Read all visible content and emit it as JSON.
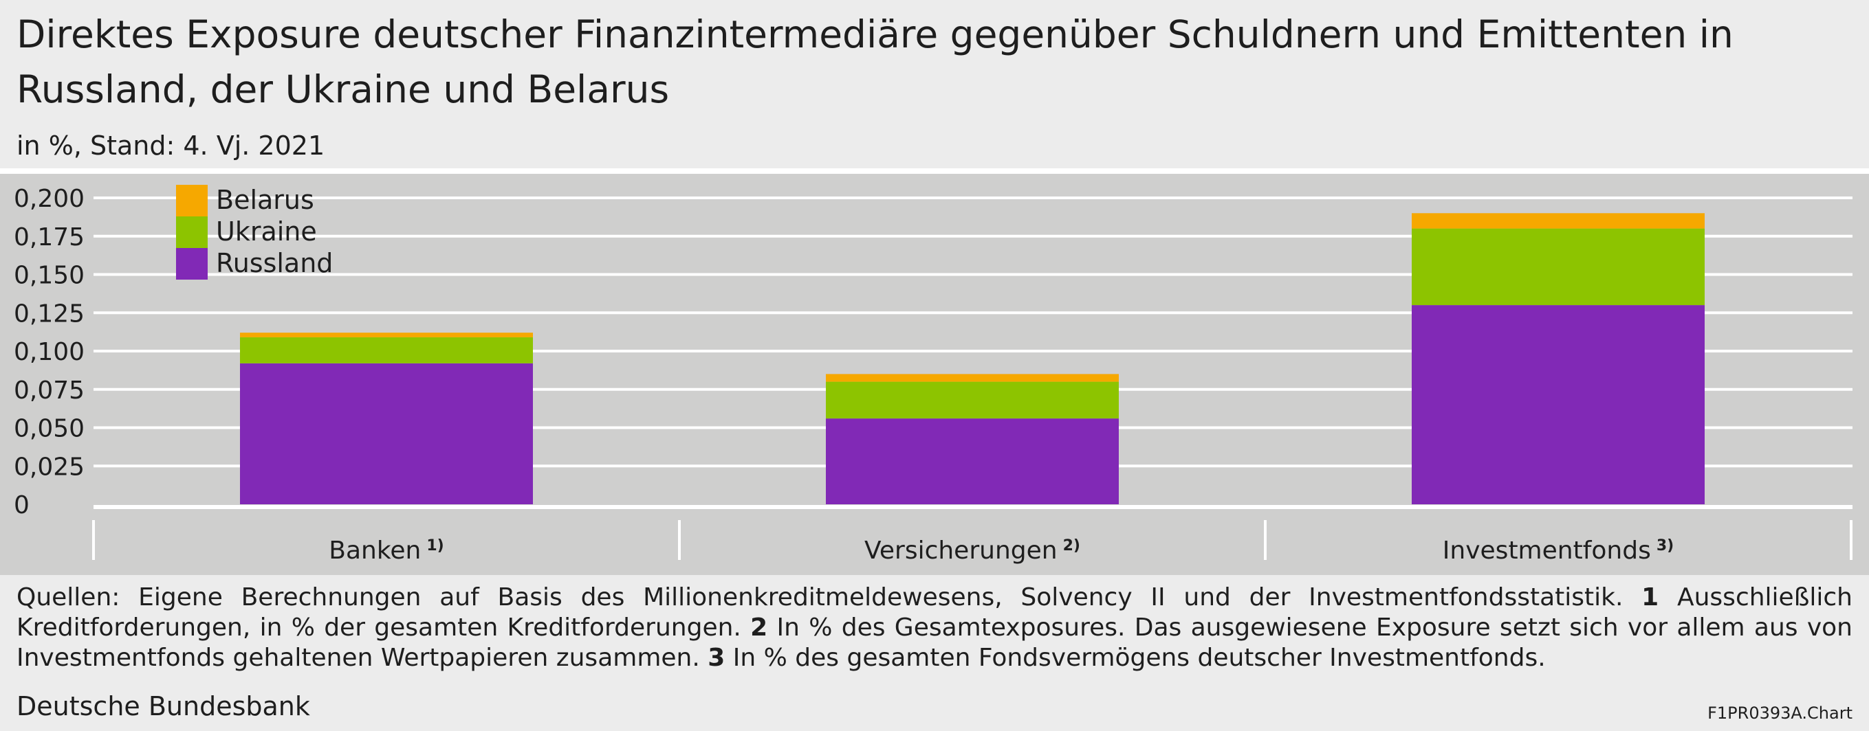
{
  "header": {
    "title": "Direktes Exposure deutscher Finanzintermediäre gegenüber Schuldnern und Emittenten in Russland, der Ukraine und Belarus",
    "subtitle": "in %, Stand: 4. Vj. 2021"
  },
  "chart_data": {
    "type": "bar",
    "stacked": true,
    "categories": [
      "Banken",
      "Versicherungen",
      "Investmentfonds"
    ],
    "category_footnotes": [
      "1)",
      "2)",
      "3)"
    ],
    "series": [
      {
        "name": "Russland",
        "color": "#8129b6",
        "values": [
          0.092,
          0.056,
          0.13
        ]
      },
      {
        "name": "Ukraine",
        "color": "#8dc400",
        "values": [
          0.017,
          0.024,
          0.05
        ]
      },
      {
        "name": "Belarus",
        "color": "#f6a800",
        "values": [
          0.003,
          0.005,
          0.01
        ]
      }
    ],
    "ylim": [
      0,
      0.2
    ],
    "yticks": [
      0,
      0.025,
      0.05,
      0.075,
      0.1,
      0.125,
      0.15,
      0.175,
      0.2
    ],
    "ytick_labels": [
      "0",
      "0,025",
      "0,050",
      "0,075",
      "0,100",
      "0,125",
      "0,150",
      "0,175",
      "0,200"
    ],
    "grid": true,
    "legend_position": "top-left",
    "legend_order": [
      "Belarus",
      "Ukraine",
      "Russland"
    ]
  },
  "footer": {
    "notes_parts": [
      {
        "text": "Quellen: Eigene Berechnungen auf Basis des Millionenkreditmeldewesens, Solvency II und der Investmentfondsstatistik. "
      },
      {
        "bold": "1"
      },
      {
        "text": " Ausschließlich Kreditforderungen, in % der gesamten Kreditforderungen. "
      },
      {
        "bold": "2"
      },
      {
        "text": " In % des Gesamtexposures. Das ausgewiesene Exposure setzt sich vor allem aus von Investmentfonds gehaltenen Wertpapieren zusammen. "
      },
      {
        "bold": "3"
      },
      {
        "text": " In % des gesamten Fondsvermögens deutscher Investmentfonds."
      }
    ],
    "source": "Deutsche Bundesbank",
    "chart_code": "F1PR0393A.Chart"
  }
}
